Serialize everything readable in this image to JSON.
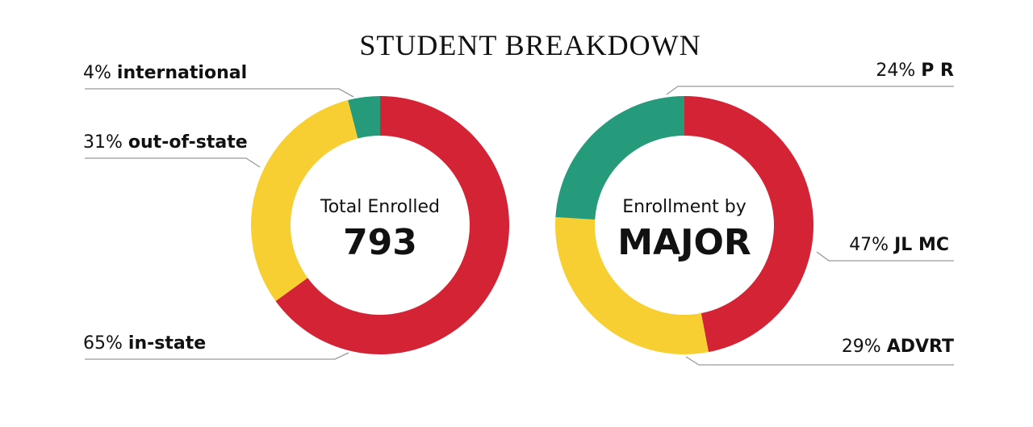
{
  "title": "STUDENT BREAKDOWN",
  "chart_data": [
    {
      "type": "pie",
      "donut": true,
      "center_label": "Total Enrolled",
      "center_value": "793",
      "categories": [
        "in-state",
        "out-of-state",
        "international"
      ],
      "values": [
        65,
        31,
        4
      ],
      "value_labels": [
        "65%",
        "31%",
        "4%"
      ],
      "colors": [
        "#d42334",
        "#f7cf33",
        "#259b7c"
      ]
    },
    {
      "type": "pie",
      "donut": true,
      "center_label": "Enrollment by",
      "center_value": "MAJOR",
      "categories": [
        "JL MC",
        "ADVRT",
        "P R"
      ],
      "values": [
        47,
        29,
        24
      ],
      "value_labels": [
        "47%",
        "29%",
        "24%"
      ],
      "colors": [
        "#d42334",
        "#f7cf33",
        "#259b7c"
      ]
    }
  ]
}
